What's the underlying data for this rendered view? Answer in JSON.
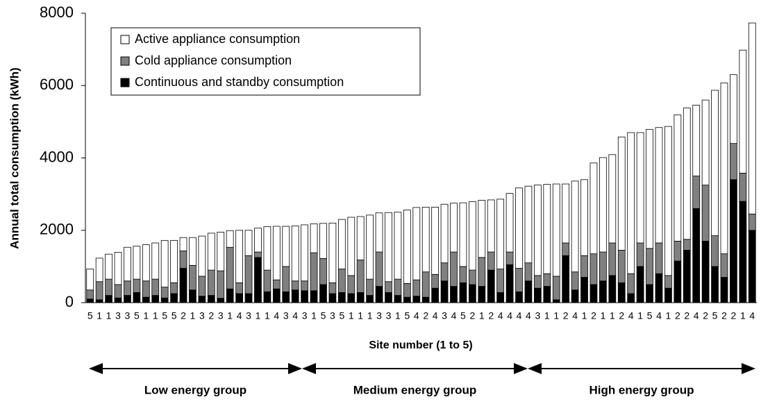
{
  "chart_data": {
    "type": "stacked-bar",
    "y_label": "Annual total consumption (kWh)",
    "x_label": "Site number (1 to 5)",
    "categories": [
      "5",
      "1",
      "1",
      "3",
      "3",
      "5",
      "1",
      "1",
      "5",
      "5",
      "2",
      "1",
      "3",
      "2",
      "3",
      "1",
      "4",
      "3",
      "1",
      "1",
      "4",
      "3",
      "4",
      "3",
      "1",
      "5",
      "3",
      "5",
      "1",
      "1",
      "1",
      "3",
      "3",
      "1",
      "5",
      "4",
      "2",
      "4",
      "3",
      "4",
      "5",
      "2",
      "1",
      "2",
      "4",
      "4",
      "4",
      "4",
      "3",
      "1",
      "1",
      "2",
      "4",
      "1",
      "2",
      "1",
      "1",
      "2",
      "4",
      "1",
      "5",
      "4",
      "1",
      "2",
      "2",
      "4",
      "2",
      "5",
      "2",
      "2",
      "1",
      "4"
    ],
    "series": [
      {
        "name": "Active appliance consumption",
        "color": "#ffffff",
        "values": [
          580,
          650,
          690,
          890,
          930,
          910,
          1000,
          1000,
          1290,
          1170,
          370,
          770,
          1110,
          1020,
          1070,
          460,
          1450,
          700,
          660,
          1200,
          1480,
          1110,
          1520,
          1550,
          800,
          970,
          1650,
          1370,
          1610,
          1200,
          1770,
          1080,
          1910,
          1850,
          2030,
          2000,
          1790,
          1860,
          1620,
          1350,
          1760,
          1890,
          1580,
          1440,
          1930,
          1620,
          2220,
          2120,
          2500,
          2470,
          2550,
          1630,
          2510,
          2100,
          2510,
          2610,
          2440,
          3130,
          3900,
          3050,
          3290,
          3190,
          4120,
          3490,
          3630,
          1960,
          2350,
          4020,
          4720,
          1900,
          3400,
          5280
        ]
      },
      {
        "name": "Cold appliance consumption",
        "color": "#808080",
        "values": [
          250,
          500,
          450,
          370,
          400,
          370,
          450,
          450,
          300,
          300,
          480,
          680,
          550,
          700,
          760,
          1150,
          300,
          1050,
          150,
          600,
          250,
          700,
          250,
          270,
          1050,
          720,
          300,
          650,
          500,
          900,
          450,
          950,
          300,
          450,
          380,
          450,
          700,
          380,
          500,
          950,
          450,
          400,
          800,
          500,
          650,
          350,
          650,
          500,
          350,
          350,
          650,
          350,
          500,
          600,
          850,
          800,
          900,
          900,
          550,
          650,
          1000,
          850,
          350,
          550,
          300,
          900,
          1550,
          850,
          650,
          1000,
          780,
          450
        ]
      },
      {
        "name": "Continuous and standby consumption",
        "color": "#000000",
        "values": [
          100,
          80,
          200,
          130,
          200,
          280,
          150,
          200,
          130,
          250,
          950,
          350,
          180,
          200,
          120,
          380,
          250,
          250,
          1250,
          300,
          380,
          300,
          350,
          330,
          330,
          500,
          250,
          280,
          250,
          280,
          200,
          450,
          280,
          200,
          150,
          180,
          150,
          400,
          600,
          450,
          550,
          500,
          450,
          900,
          280,
          1050,
          300,
          600,
          400,
          450,
          80,
          1300,
          350,
          700,
          500,
          600,
          750,
          550,
          250,
          1000,
          500,
          800,
          400,
          1150,
          1450,
          2600,
          1700,
          1000,
          700,
          3400,
          2800,
          2000
        ]
      }
    ],
    "ylim": [
      0,
      8000
    ],
    "yticks": [
      0,
      2000,
      4000,
      6000,
      8000
    ],
    "groups": [
      "Low energy group",
      "Medium energy group",
      "High energy group"
    ]
  }
}
